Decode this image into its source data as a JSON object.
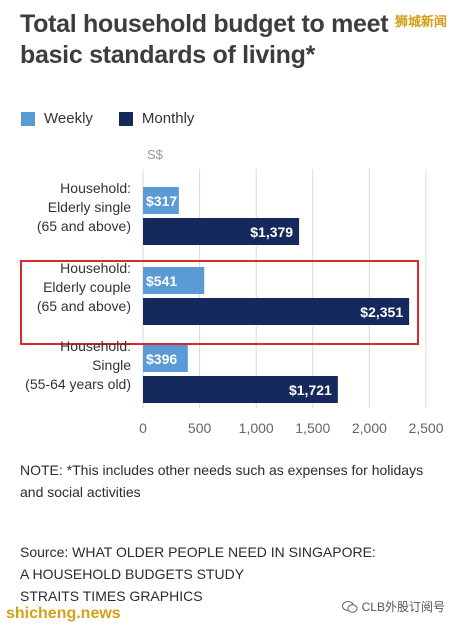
{
  "title": "Total household budget to meet basic standards of living*",
  "watermark_top": "狮城新闻",
  "legend": {
    "weekly_label": "Weekly",
    "monthly_label": "Monthly"
  },
  "colors": {
    "weekly": "#5b9bd5",
    "monthly": "#15295c",
    "highlight": "#d62b2b",
    "grid": "#d8d8d8"
  },
  "chart_data": {
    "type": "bar",
    "orientation": "horizontal",
    "unit_label": "S$",
    "categories": [
      [
        "Household:",
        "Elderly single",
        "(65 and above)"
      ],
      [
        "Household:",
        "Elderly couple",
        "(65 and above)"
      ],
      [
        "Household:",
        "Single",
        "(55-64 years old)"
      ]
    ],
    "series": [
      {
        "name": "Weekly",
        "values": [
          317,
          541,
          396
        ],
        "labels": [
          "$317",
          "$541",
          "$396"
        ]
      },
      {
        "name": "Monthly",
        "values": [
          1379,
          2351,
          1721
        ],
        "labels": [
          "$1,379",
          "$2,351",
          "$1,721"
        ]
      }
    ],
    "xlim": [
      0,
      2500
    ],
    "xticks": [
      0,
      500,
      1000,
      1500,
      2000,
      2500
    ],
    "xtick_labels": [
      "0",
      "500",
      "1,000",
      "1,500",
      "2,000",
      "2,500"
    ],
    "grid": true,
    "highlighted_category_index": 1
  },
  "note": "NOTE: *This includes other needs such as expenses for holidays and social activities",
  "source_lines": [
    "Source: WHAT OLDER PEOPLE NEED IN SINGAPORE:",
    "A HOUSEHOLD BUDGETS STUDY",
    "STRAITS TIMES GRAPHICS"
  ],
  "watermark_bottom_left": "shicheng.news",
  "watermark_bottom_right": "CLB外股订阅号"
}
